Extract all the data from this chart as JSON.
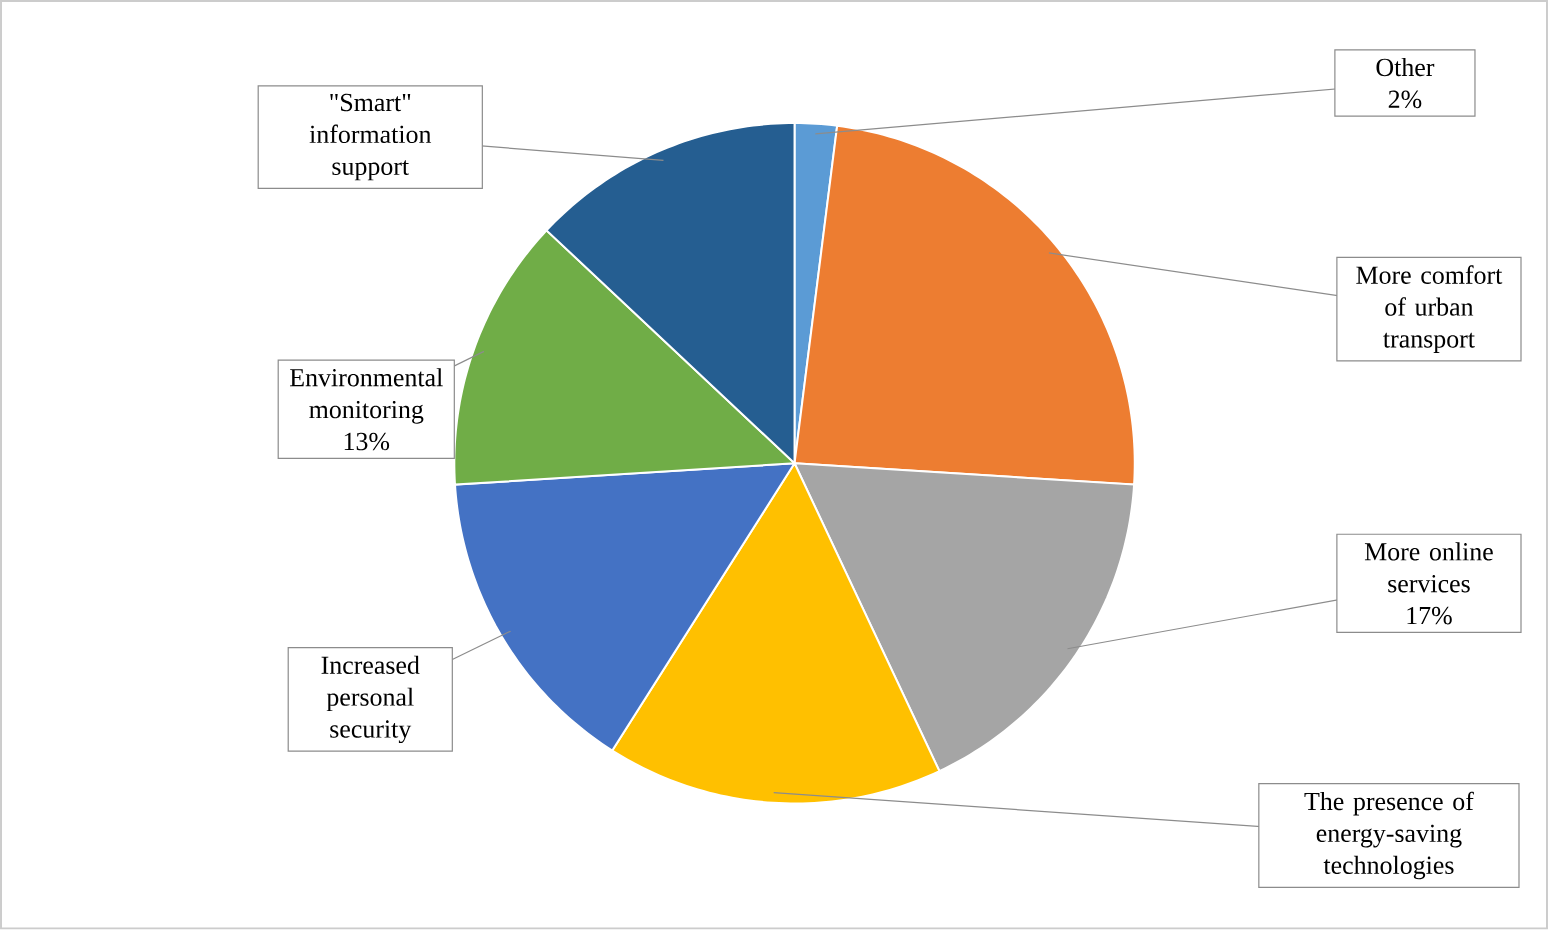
{
  "chart_data": {
    "type": "pie",
    "categories": [
      "Other",
      "More comfort of urban transport",
      "More online services",
      "The presence of energy-saving technologies",
      "Increased personal security",
      "Environmental monitoring",
      "\"Smart\" information support"
    ],
    "values": [
      2,
      24,
      17,
      16,
      15,
      13,
      13
    ],
    "value_labels": [
      "2%",
      null,
      "17%",
      null,
      null,
      "13%",
      null
    ],
    "colors": [
      "#5b9bd5",
      "#ed7d31",
      "#a5a5a5",
      "#ffc000",
      "#4472c4",
      "#70ad47",
      "#255e91"
    ]
  }
}
